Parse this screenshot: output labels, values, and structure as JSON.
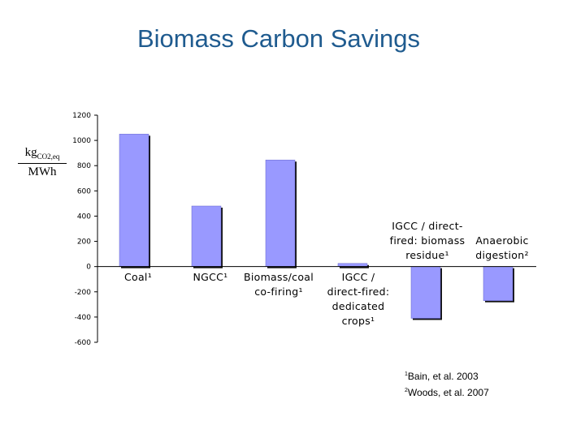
{
  "slide": {
    "title": "Biomass Carbon Savings"
  },
  "chart_data": {
    "type": "bar",
    "title": "Biomass Carbon Savings",
    "ylabel_numerator": "kg",
    "ylabel_numerator_sub": "CO2,eq",
    "ylabel_denominator": "MWh",
    "ylim": [
      -600,
      1200
    ],
    "yticks": [
      1200,
      1000,
      800,
      600,
      400,
      200,
      0,
      -200,
      -400,
      -600
    ],
    "categories": [
      "Coal¹",
      "NGCC¹",
      "Biomass/coal\nco-firing¹",
      "IGCC /\ndirect-fired:\ndedicated\ncrops¹",
      "IGCC / direct-\nfired: biomass\nresidue¹",
      "Anaerobic\ndigestion²"
    ],
    "values": [
      1050,
      480,
      845,
      25,
      -410,
      -270
    ],
    "bar_color": "#9999ff",
    "grid": false
  },
  "references": [
    {
      "mark": "1",
      "text": "Bain, et al. 2003"
    },
    {
      "mark": "2",
      "text": "Woods, et al. 2007"
    }
  ]
}
